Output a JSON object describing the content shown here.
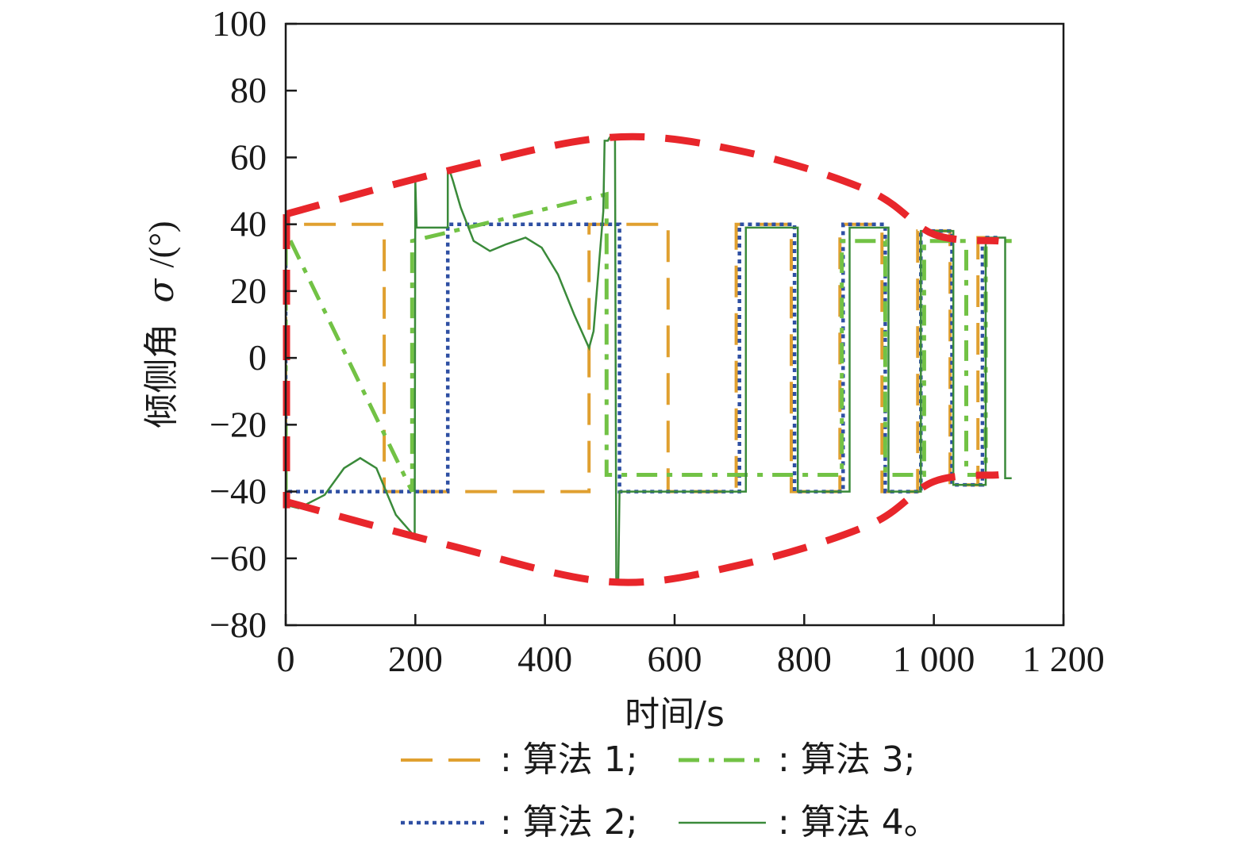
{
  "chart_data": {
    "type": "line",
    "title": "",
    "xlabel": "时间/s",
    "ylabel_text": "倾侧角",
    "ylabel_symbol": "σ",
    "ylabel_unit": "/(°)",
    "xlim": [
      0,
      1200
    ],
    "ylim": [
      -80,
      100
    ],
    "x_ticks": [
      0,
      200,
      400,
      600,
      800,
      1000,
      1200
    ],
    "x_tick_labels": [
      "0",
      "200",
      "400",
      "600",
      "800",
      "1 000",
      "1 200"
    ],
    "y_ticks": [
      -80,
      -60,
      -40,
      -20,
      0,
      20,
      40,
      60,
      80,
      100
    ],
    "y_tick_labels": [
      "−80",
      "−60",
      "−40",
      "−20",
      "0",
      "20",
      "40",
      "60",
      "80",
      "100"
    ],
    "grid": false,
    "legend_placement": "bottom",
    "colors": {
      "bound": "#e8262b",
      "s1": "#e0a030",
      "s2": "#2e4fa3",
      "s3": "#72c245",
      "s4": "#3a8a3a"
    },
    "bounds": {
      "upper": {
        "x": [
          0,
          250,
          500,
          700,
          900,
          1000,
          1100
        ],
        "y": [
          43,
          56,
          66,
          62,
          50,
          37,
          35
        ]
      },
      "lower": {
        "x": [
          0,
          250,
          500,
          700,
          900,
          1000,
          1100
        ],
        "y": [
          -43,
          -56,
          -67,
          -62,
          -50,
          -37,
          -35
        ]
      },
      "left_edge_x": 0,
      "left_edge_y": [
        -45,
        43
      ]
    },
    "series": [
      {
        "name": "算法 1",
        "legend_label": ": 算法 1;",
        "style": "dashed",
        "x": [
          0,
          0,
          152,
          152,
          468,
          468,
          590,
          590,
          695,
          695,
          780,
          780,
          855,
          855,
          920,
          920,
          975,
          975,
          1025,
          1025,
          1068,
          1068,
          1100
        ],
        "y": [
          -40,
          40,
          40,
          -40,
          -40,
          40,
          40,
          -40,
          -40,
          40,
          40,
          -40,
          -40,
          40,
          40,
          -40,
          -40,
          38,
          38,
          -38,
          -38,
          36,
          36
        ]
      },
      {
        "name": "算法 2",
        "legend_label": ": 算法 2;",
        "style": "dotted",
        "x": [
          0,
          0,
          250,
          250,
          515,
          515,
          700,
          700,
          785,
          785,
          860,
          860,
          925,
          925,
          980,
          980,
          1028,
          1028,
          1075,
          1075,
          1100
        ],
        "y": [
          40,
          -40,
          -40,
          40,
          40,
          -40,
          -40,
          40,
          40,
          -40,
          -40,
          40,
          40,
          -40,
          -40,
          38,
          38,
          -38,
          -38,
          36,
          36
        ]
      },
      {
        "name": "算法 3",
        "legend_label": ": 算法 3;",
        "style": "dashdot",
        "x": [
          0,
          0,
          195,
          195,
          495,
          495,
          858,
          858,
          925,
          925,
          985,
          985,
          1050,
          1050,
          1080,
          1080,
          1120
        ],
        "y": [
          -40,
          38,
          -40,
          35,
          49,
          -35,
          -35,
          35,
          35,
          -35,
          -35,
          35,
          35,
          -35,
          -35,
          35,
          35
        ]
      },
      {
        "name": "算法 4",
        "legend_label": ": 算法 4。",
        "style": "solid",
        "x": [
          0,
          0,
          0,
          20,
          60,
          90,
          115,
          140,
          170,
          197,
          199,
          200,
          202,
          250,
          250,
          253,
          258,
          270,
          290,
          315,
          340,
          370,
          395,
          420,
          445,
          468,
          475,
          490,
          492,
          497,
          500,
          508,
          510,
          512,
          513,
          515,
          517,
          520,
          710,
          710,
          790,
          790,
          870,
          870,
          930,
          930,
          980,
          980,
          1030,
          1030,
          1080,
          1080,
          1110,
          1110,
          1120
        ],
        "y": [
          40,
          -40,
          -44,
          -45,
          -41,
          -33,
          -30,
          -33,
          -47,
          -53,
          -53,
          53,
          39,
          39,
          56,
          56,
          53,
          45,
          35,
          32,
          34,
          36,
          33,
          25,
          13,
          3,
          8,
          44,
          65,
          65,
          66,
          66,
          -66,
          -67,
          -67,
          -40,
          -40,
          -40,
          -40,
          39,
          39,
          -40,
          -40,
          39,
          39,
          -40,
          -40,
          38,
          38,
          -38,
          -38,
          36,
          36,
          -36,
          -36
        ]
      }
    ]
  }
}
